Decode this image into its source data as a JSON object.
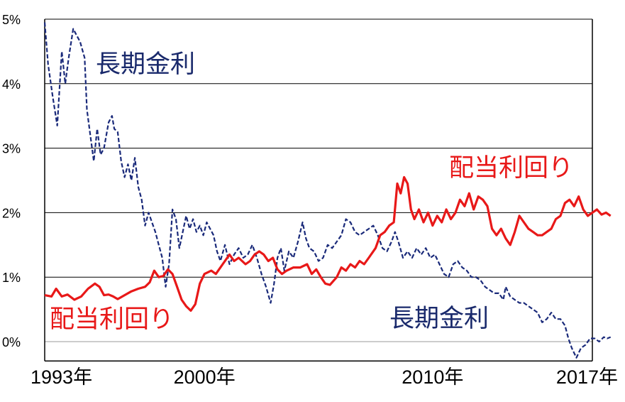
{
  "chart_data": {
    "type": "line",
    "y_tick_labels": [
      "0%",
      "1%",
      "2%",
      "3%",
      "4%",
      "5%"
    ],
    "y_ticks": [
      0,
      1,
      2,
      3,
      4,
      5
    ],
    "ylim": [
      -0.3,
      5
    ],
    "xlim": [
      1993,
      2017
    ],
    "x_tick_labels": [
      {
        "x": 1993,
        "label": "1993年"
      },
      {
        "x": 2000,
        "label": "2000年"
      },
      {
        "x": 2010,
        "label": "2010年"
      },
      {
        "x": 2017,
        "label": "2017年"
      }
    ],
    "grid": true,
    "annotations": [
      {
        "text": "長期金利",
        "series": 0,
        "color": "#1a2a6c"
      },
      {
        "text": "配当利回り",
        "series": 1,
        "color": "#e81818"
      },
      {
        "text": "配当利回り",
        "series": 1,
        "color": "#e81818"
      },
      {
        "text": "長期金利",
        "series": 0,
        "color": "#1a2a6c"
      }
    ],
    "series": [
      {
        "name": "長期金利",
        "color": "#1a2a7a",
        "style": "dashed",
        "points": [
          [
            1993.0,
            4.95
          ],
          [
            1993.15,
            4.3
          ],
          [
            1993.35,
            3.8
          ],
          [
            1993.55,
            3.35
          ],
          [
            1993.75,
            4.5
          ],
          [
            1993.9,
            4.0
          ],
          [
            1994.05,
            4.4
          ],
          [
            1994.25,
            4.85
          ],
          [
            1994.4,
            4.75
          ],
          [
            1994.55,
            4.65
          ],
          [
            1994.75,
            4.4
          ],
          [
            1994.85,
            3.6
          ],
          [
            1995.0,
            3.2
          ],
          [
            1995.15,
            2.8
          ],
          [
            1995.3,
            3.3
          ],
          [
            1995.45,
            2.9
          ],
          [
            1995.6,
            3.0
          ],
          [
            1995.8,
            3.4
          ],
          [
            1995.95,
            3.5
          ],
          [
            1996.05,
            3.3
          ],
          [
            1996.2,
            3.25
          ],
          [
            1996.35,
            2.8
          ],
          [
            1996.5,
            2.55
          ],
          [
            1996.65,
            2.75
          ],
          [
            1996.8,
            2.5
          ],
          [
            1996.95,
            2.85
          ],
          [
            1997.1,
            2.4
          ],
          [
            1997.25,
            2.2
          ],
          [
            1997.4,
            1.8
          ],
          [
            1997.55,
            2.0
          ],
          [
            1997.7,
            1.85
          ],
          [
            1997.85,
            1.7
          ],
          [
            1998.0,
            1.5
          ],
          [
            1998.15,
            1.3
          ],
          [
            1998.3,
            0.85
          ],
          [
            1998.45,
            1.2
          ],
          [
            1998.6,
            2.05
          ],
          [
            1998.75,
            1.9
          ],
          [
            1998.9,
            1.45
          ],
          [
            1999.05,
            1.7
          ],
          [
            1999.2,
            1.95
          ],
          [
            1999.35,
            1.75
          ],
          [
            1999.5,
            1.9
          ],
          [
            1999.65,
            1.7
          ],
          [
            1999.8,
            1.8
          ],
          [
            1999.95,
            1.65
          ],
          [
            2000.1,
            1.85
          ],
          [
            2000.25,
            1.75
          ],
          [
            2000.4,
            1.65
          ],
          [
            2000.55,
            1.4
          ],
          [
            2000.7,
            1.25
          ],
          [
            2000.9,
            1.5
          ],
          [
            2001.1,
            1.2
          ],
          [
            2001.3,
            1.35
          ],
          [
            2001.5,
            1.45
          ],
          [
            2001.7,
            1.3
          ],
          [
            2001.9,
            1.35
          ],
          [
            2002.1,
            1.5
          ],
          [
            2002.3,
            1.3
          ],
          [
            2002.5,
            1.05
          ],
          [
            2002.7,
            0.85
          ],
          [
            2002.9,
            0.6
          ],
          [
            2003.05,
            0.9
          ],
          [
            2003.2,
            1.3
          ],
          [
            2003.35,
            1.45
          ],
          [
            2003.5,
            1.1
          ],
          [
            2003.7,
            1.4
          ],
          [
            2003.9,
            1.3
          ],
          [
            2004.1,
            1.55
          ],
          [
            2004.3,
            1.85
          ],
          [
            2004.45,
            1.6
          ],
          [
            2004.6,
            1.45
          ],
          [
            2004.8,
            1.4
          ],
          [
            2005.0,
            1.25
          ],
          [
            2005.2,
            1.3
          ],
          [
            2005.4,
            1.5
          ],
          [
            2005.6,
            1.45
          ],
          [
            2005.8,
            1.55
          ],
          [
            2006.0,
            1.65
          ],
          [
            2006.2,
            1.9
          ],
          [
            2006.4,
            1.85
          ],
          [
            2006.6,
            1.7
          ],
          [
            2006.8,
            1.65
          ],
          [
            2007.0,
            1.7
          ],
          [
            2007.2,
            1.75
          ],
          [
            2007.4,
            1.8
          ],
          [
            2007.6,
            1.65
          ],
          [
            2007.8,
            1.45
          ],
          [
            2008.0,
            1.4
          ],
          [
            2008.2,
            1.55
          ],
          [
            2008.35,
            1.7
          ],
          [
            2008.5,
            1.55
          ],
          [
            2008.7,
            1.3
          ],
          [
            2008.9,
            1.4
          ],
          [
            2009.1,
            1.3
          ],
          [
            2009.3,
            1.45
          ],
          [
            2009.5,
            1.35
          ],
          [
            2009.7,
            1.45
          ],
          [
            2009.9,
            1.3
          ],
          [
            2010.1,
            1.35
          ],
          [
            2010.3,
            1.2
          ],
          [
            2010.5,
            1.05
          ],
          [
            2010.7,
            1.0
          ],
          [
            2010.9,
            1.2
          ],
          [
            2011.1,
            1.25
          ],
          [
            2011.3,
            1.15
          ],
          [
            2011.5,
            1.1
          ],
          [
            2011.7,
            1.0
          ],
          [
            2011.9,
            1.0
          ],
          [
            2012.1,
            0.95
          ],
          [
            2012.3,
            0.85
          ],
          [
            2012.5,
            0.8
          ],
          [
            2012.7,
            0.75
          ],
          [
            2012.9,
            0.75
          ],
          [
            2013.1,
            0.65
          ],
          [
            2013.2,
            0.85
          ],
          [
            2013.4,
            0.7
          ],
          [
            2013.6,
            0.65
          ],
          [
            2013.8,
            0.6
          ],
          [
            2014.0,
            0.6
          ],
          [
            2014.2,
            0.55
          ],
          [
            2014.4,
            0.5
          ],
          [
            2014.6,
            0.45
          ],
          [
            2014.8,
            0.3
          ],
          [
            2015.0,
            0.35
          ],
          [
            2015.2,
            0.45
          ],
          [
            2015.4,
            0.35
          ],
          [
            2015.6,
            0.35
          ],
          [
            2015.8,
            0.25
          ],
          [
            2015.95,
            0.05
          ],
          [
            2016.1,
            -0.1
          ],
          [
            2016.3,
            -0.25
          ],
          [
            2016.5,
            -0.1
          ],
          [
            2016.7,
            -0.05
          ],
          [
            2016.9,
            0.05
          ],
          [
            2017.1,
            0.05
          ],
          [
            2017.3,
            0.0
          ],
          [
            2017.5,
            0.07
          ],
          [
            2017.65,
            0.05
          ],
          [
            2017.8,
            0.07
          ]
        ]
      },
      {
        "name": "配当利回り",
        "color": "#e81818",
        "style": "solid",
        "points": [
          [
            1993.0,
            0.72
          ],
          [
            1993.3,
            0.7
          ],
          [
            1993.5,
            0.82
          ],
          [
            1993.75,
            0.7
          ],
          [
            1994.0,
            0.73
          ],
          [
            1994.3,
            0.65
          ],
          [
            1994.6,
            0.7
          ],
          [
            1994.9,
            0.82
          ],
          [
            1995.2,
            0.9
          ],
          [
            1995.4,
            0.85
          ],
          [
            1995.6,
            0.72
          ],
          [
            1995.8,
            0.73
          ],
          [
            1996.0,
            0.7
          ],
          [
            1996.2,
            0.66
          ],
          [
            1996.5,
            0.72
          ],
          [
            1996.8,
            0.78
          ],
          [
            1997.1,
            0.82
          ],
          [
            1997.4,
            0.85
          ],
          [
            1997.6,
            0.92
          ],
          [
            1997.8,
            1.1
          ],
          [
            1998.0,
            1.0
          ],
          [
            1998.2,
            1.02
          ],
          [
            1998.4,
            1.12
          ],
          [
            1998.6,
            1.05
          ],
          [
            1998.8,
            0.85
          ],
          [
            1999.0,
            0.65
          ],
          [
            1999.2,
            0.55
          ],
          [
            1999.4,
            0.48
          ],
          [
            1999.6,
            0.58
          ],
          [
            1999.8,
            0.9
          ],
          [
            2000.0,
            1.05
          ],
          [
            2000.3,
            1.1
          ],
          [
            2000.5,
            1.05
          ],
          [
            2000.8,
            1.2
          ],
          [
            2001.1,
            1.35
          ],
          [
            2001.3,
            1.25
          ],
          [
            2001.5,
            1.3
          ],
          [
            2001.8,
            1.2
          ],
          [
            2002.0,
            1.25
          ],
          [
            2002.2,
            1.35
          ],
          [
            2002.4,
            1.4
          ],
          [
            2002.6,
            1.35
          ],
          [
            2002.8,
            1.25
          ],
          [
            2003.0,
            1.3
          ],
          [
            2003.2,
            1.12
          ],
          [
            2003.4,
            1.05
          ],
          [
            2003.6,
            1.1
          ],
          [
            2003.9,
            1.15
          ],
          [
            2004.2,
            1.15
          ],
          [
            2004.5,
            1.2
          ],
          [
            2004.7,
            1.05
          ],
          [
            2004.9,
            1.12
          ],
          [
            2005.1,
            1.0
          ],
          [
            2005.3,
            0.9
          ],
          [
            2005.5,
            0.88
          ],
          [
            2005.8,
            1.0
          ],
          [
            2006.0,
            1.15
          ],
          [
            2006.2,
            1.1
          ],
          [
            2006.4,
            1.2
          ],
          [
            2006.6,
            1.15
          ],
          [
            2006.8,
            1.25
          ],
          [
            2007.0,
            1.2
          ],
          [
            2007.2,
            1.3
          ],
          [
            2007.5,
            1.45
          ],
          [
            2007.7,
            1.65
          ],
          [
            2007.9,
            1.7
          ],
          [
            2008.1,
            1.8
          ],
          [
            2008.3,
            1.85
          ],
          [
            2008.45,
            2.45
          ],
          [
            2008.6,
            2.3
          ],
          [
            2008.75,
            2.55
          ],
          [
            2008.9,
            2.45
          ],
          [
            2009.05,
            2.05
          ],
          [
            2009.2,
            1.9
          ],
          [
            2009.4,
            2.05
          ],
          [
            2009.6,
            1.85
          ],
          [
            2009.8,
            2.0
          ],
          [
            2010.0,
            1.8
          ],
          [
            2010.2,
            1.95
          ],
          [
            2010.4,
            1.85
          ],
          [
            2010.6,
            2.05
          ],
          [
            2010.8,
            1.9
          ],
          [
            2011.0,
            2.0
          ],
          [
            2011.2,
            2.2
          ],
          [
            2011.4,
            2.1
          ],
          [
            2011.6,
            2.3
          ],
          [
            2011.8,
            2.05
          ],
          [
            2012.0,
            2.25
          ],
          [
            2012.2,
            2.2
          ],
          [
            2012.4,
            2.1
          ],
          [
            2012.6,
            1.75
          ],
          [
            2012.8,
            1.65
          ],
          [
            2013.0,
            1.75
          ],
          [
            2013.2,
            1.6
          ],
          [
            2013.4,
            1.5
          ],
          [
            2013.6,
            1.7
          ],
          [
            2013.8,
            1.95
          ],
          [
            2014.0,
            1.85
          ],
          [
            2014.2,
            1.75
          ],
          [
            2014.4,
            1.7
          ],
          [
            2014.6,
            1.65
          ],
          [
            2014.8,
            1.65
          ],
          [
            2015.0,
            1.7
          ],
          [
            2015.2,
            1.75
          ],
          [
            2015.4,
            1.9
          ],
          [
            2015.6,
            1.95
          ],
          [
            2015.8,
            2.15
          ],
          [
            2016.0,
            2.2
          ],
          [
            2016.2,
            2.1
          ],
          [
            2016.4,
            2.25
          ],
          [
            2016.6,
            2.05
          ],
          [
            2016.8,
            1.95
          ],
          [
            2017.0,
            2.0
          ],
          [
            2017.2,
            2.05
          ],
          [
            2017.4,
            1.97
          ],
          [
            2017.6,
            2.0
          ],
          [
            2017.8,
            1.95
          ]
        ]
      }
    ]
  }
}
